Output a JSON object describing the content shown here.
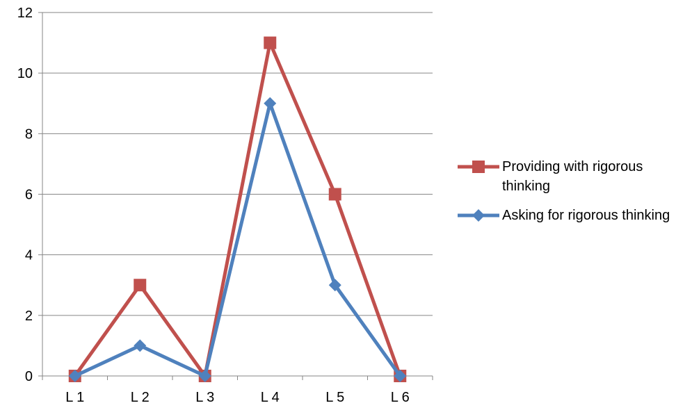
{
  "chart_data": {
    "type": "line",
    "categories": [
      "L 1",
      "L 2",
      "L 3",
      "L 4",
      "L 5",
      "L 6"
    ],
    "ylim": [
      0,
      12
    ],
    "yticks": [
      0,
      2,
      4,
      6,
      8,
      10,
      12
    ],
    "grid": true,
    "legend_position": "right",
    "series": [
      {
        "name": "Providing with rigorous thinking",
        "values": [
          0,
          3,
          0,
          11,
          6,
          0
        ],
        "color": "#C0504D",
        "marker": "square"
      },
      {
        "name": "Asking for rigorous thinking",
        "values": [
          0,
          1,
          0,
          9,
          3,
          0
        ],
        "color": "#4F81BD",
        "marker": "diamond"
      }
    ]
  }
}
